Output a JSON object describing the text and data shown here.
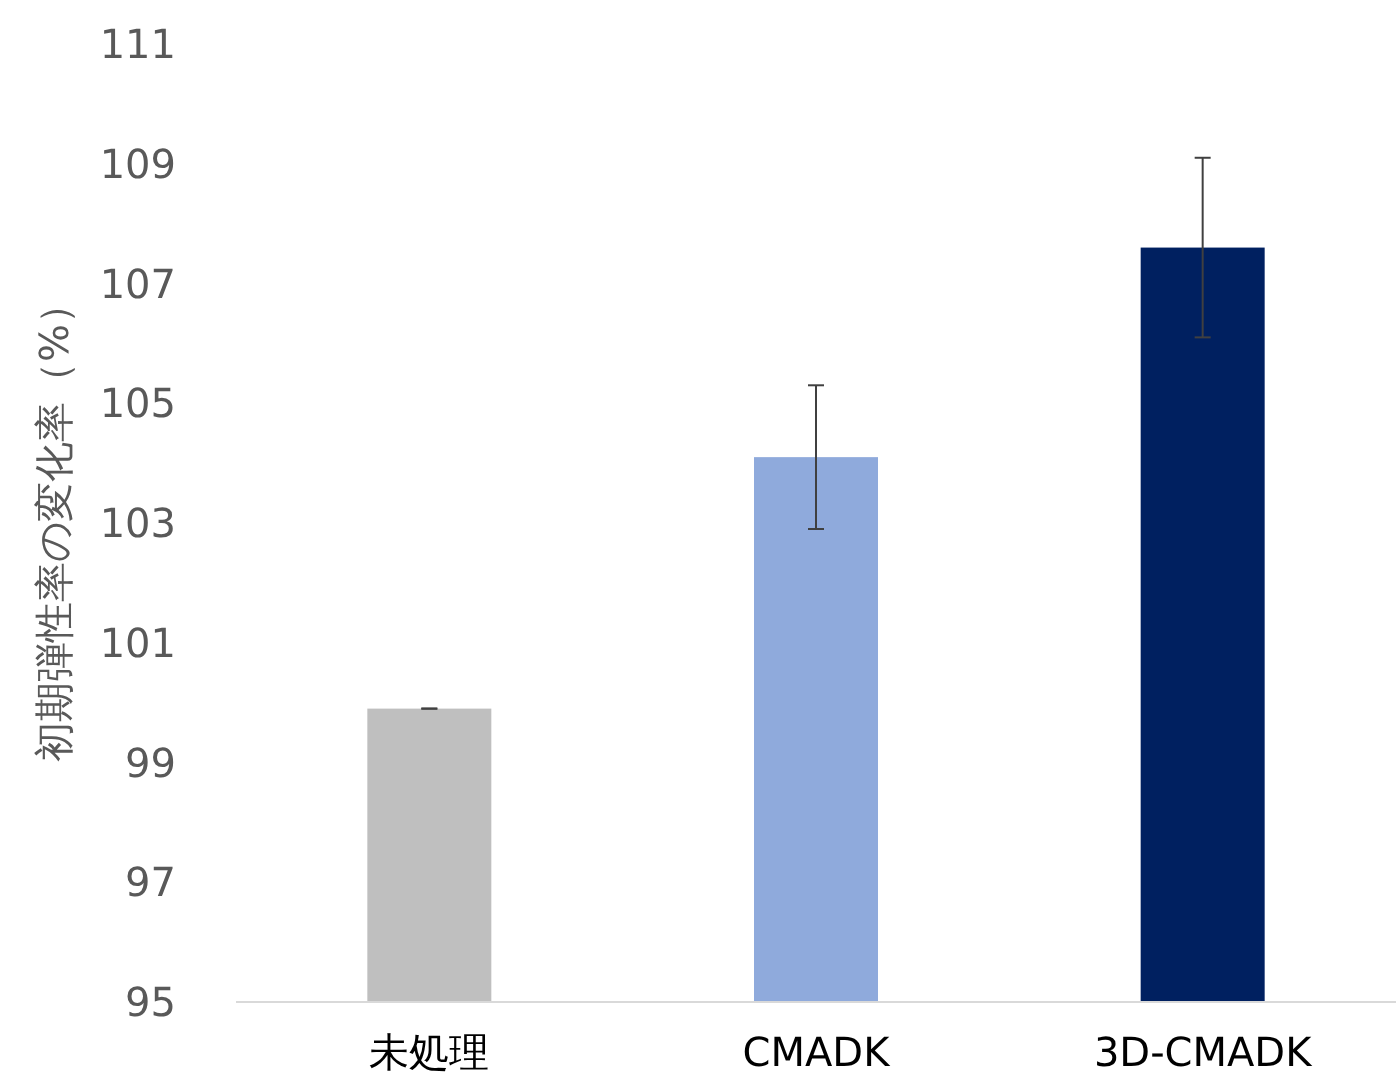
{
  "chart_data": {
    "type": "bar",
    "ylabel": "初期弾性率の変化率（%）",
    "categories": [
      "未処理",
      "CMADK",
      "3D-CMADK"
    ],
    "values": [
      99.9,
      104.1,
      107.6
    ],
    "colors": [
      "#bfbfbf",
      "#8faadc",
      "#002060"
    ],
    "errors": [
      0,
      1.2,
      1.5
    ],
    "ylim": [
      95,
      111
    ],
    "yticks": [
      95,
      97,
      99,
      101,
      103,
      105,
      107,
      109,
      111
    ],
    "grid": false
  }
}
